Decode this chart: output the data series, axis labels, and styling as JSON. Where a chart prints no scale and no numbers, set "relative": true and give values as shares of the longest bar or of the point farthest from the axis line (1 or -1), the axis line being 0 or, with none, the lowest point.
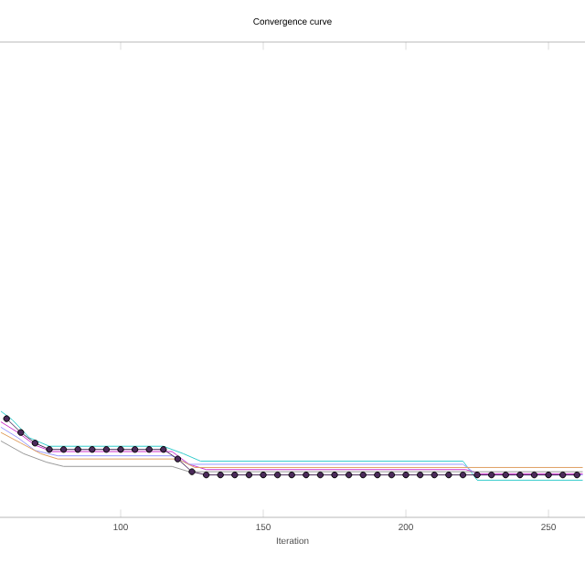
{
  "chart_data": {
    "type": "line",
    "title": "Convergence curve",
    "xlabel": "Iteration",
    "relative": true,
    "xlim": [
      57.7,
      262.8
    ],
    "xticks": [
      100,
      150,
      200,
      250
    ],
    "series": [
      {
        "color": "#33cccc",
        "x": [
          58,
          62,
          68,
          75,
          115,
          122,
          128,
          220,
          225,
          262
        ],
        "values": [
          1.0,
          0.92,
          0.75,
          0.67,
          0.67,
          0.6,
          0.53,
          0.53,
          0.35,
          0.35
        ]
      },
      {
        "color": "#cc33cc",
        "x": [
          58,
          64,
          70,
          76,
          118,
          124,
          130,
          221,
          226,
          262
        ],
        "values": [
          0.9,
          0.8,
          0.68,
          0.62,
          0.62,
          0.5,
          0.45,
          0.45,
          0.41,
          0.41
        ]
      },
      {
        "color": "#9999ff",
        "x": [
          58,
          64,
          70,
          78,
          118,
          124,
          130,
          220,
          225,
          262
        ],
        "values": [
          0.85,
          0.75,
          0.63,
          0.58,
          0.58,
          0.5,
          0.5,
          0.5,
          0.4,
          0.4
        ]
      },
      {
        "color": "#e0a060",
        "x": [
          58,
          65,
          72,
          78,
          120,
          126,
          262
        ],
        "values": [
          0.8,
          0.7,
          0.6,
          0.55,
          0.55,
          0.47,
          0.47
        ]
      },
      {
        "color": "#999999",
        "x": [
          58,
          66,
          74,
          80,
          118,
          124,
          262
        ],
        "values": [
          0.72,
          0.6,
          0.52,
          0.48,
          0.48,
          0.43,
          0.43
        ]
      },
      {
        "color": "#4b2a5a",
        "marker": "circle",
        "x": [
          60,
          65,
          70,
          75,
          80,
          85,
          90,
          95,
          100,
          105,
          110,
          115,
          120,
          125,
          130,
          135,
          140,
          145,
          150,
          155,
          160,
          165,
          170,
          175,
          180,
          185,
          190,
          195,
          200,
          205,
          210,
          215,
          220,
          225,
          230,
          235,
          240,
          245,
          250,
          255,
          260
        ],
        "values": [
          0.93,
          0.8,
          0.7,
          0.64,
          0.64,
          0.64,
          0.64,
          0.64,
          0.64,
          0.64,
          0.64,
          0.64,
          0.55,
          0.43,
          0.4,
          0.4,
          0.4,
          0.4,
          0.4,
          0.4,
          0.4,
          0.4,
          0.4,
          0.4,
          0.4,
          0.4,
          0.4,
          0.4,
          0.4,
          0.4,
          0.4,
          0.4,
          0.4,
          0.4,
          0.4,
          0.4,
          0.4,
          0.4,
          0.4,
          0.4,
          0.4
        ]
      }
    ]
  }
}
